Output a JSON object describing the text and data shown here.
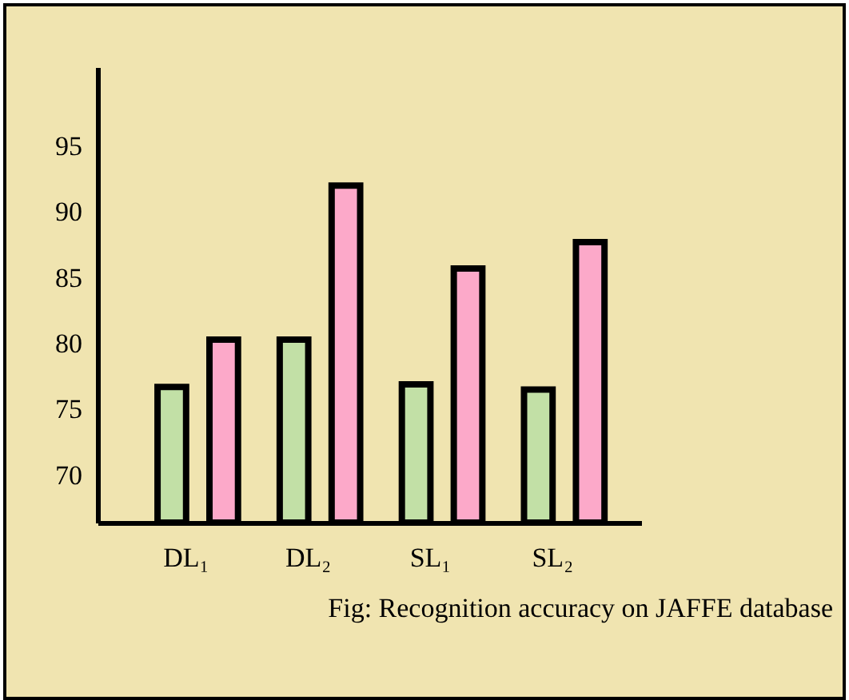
{
  "chart_data": {
    "type": "bar",
    "categories": [
      "DL₁",
      "DL₂",
      "SL₁",
      "SL₂"
    ],
    "series": [
      {
        "color": "#c2e0a6",
        "values": [
          76.7,
          80.3,
          76.9,
          76.5
        ]
      },
      {
        "color": "#fca9c9",
        "values": [
          80.3,
          92.0,
          85.7,
          87.7
        ]
      }
    ],
    "ylim": [
      66.4,
      101
    ],
    "yticks": [
      70,
      75,
      80,
      85,
      90,
      95
    ],
    "grid": false,
    "legend": false,
    "annotations": [
      "Fig: Recognition accuracy on JAFFE database"
    ]
  }
}
